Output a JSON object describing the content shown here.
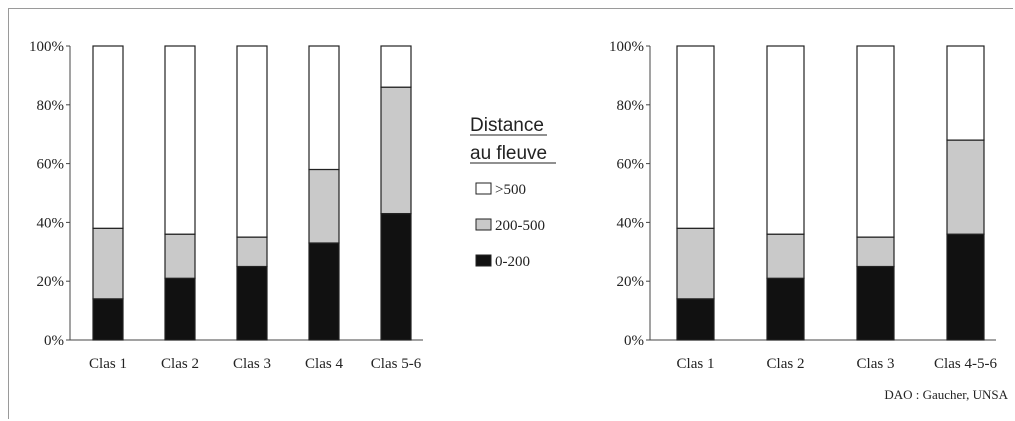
{
  "chart_data": [
    {
      "type": "bar",
      "stacked": true,
      "categories": [
        "Clas 1",
        "Clas 2",
        "Clas 3",
        "Clas 4",
        "Clas 5-6"
      ],
      "series": [
        {
          "name": "0-200",
          "values": [
            14,
            21,
            25,
            33,
            43
          ]
        },
        {
          "name": "200-500",
          "values": [
            24,
            15,
            10,
            25,
            43
          ]
        },
        {
          "name": ">500",
          "values": [
            62,
            64,
            65,
            42,
            14
          ]
        }
      ],
      "yticks": [
        "0%",
        "20%",
        "40%",
        "60%",
        "80%",
        "100%"
      ],
      "ylim": [
        0,
        100
      ],
      "grid": false
    },
    {
      "type": "bar",
      "stacked": true,
      "categories": [
        "Clas 1",
        "Clas 2",
        "Clas 3",
        "Clas 4-5-6"
      ],
      "series": [
        {
          "name": "0-200",
          "values": [
            14,
            21,
            25,
            36
          ]
        },
        {
          "name": "200-500",
          "values": [
            24,
            15,
            10,
            32
          ]
        },
        {
          "name": ">500",
          "values": [
            62,
            64,
            65,
            32
          ]
        }
      ],
      "yticks": [
        "0%",
        "20%",
        "40%",
        "60%",
        "80%",
        "100%"
      ],
      "ylim": [
        0,
        100
      ],
      "grid": false
    }
  ],
  "legend": {
    "title_line1": "Distance",
    "title_line2": "au fleuve",
    "items": [
      {
        "label": ">500",
        "color": "#ffffff"
      },
      {
        "label": "200-500",
        "color": "#c9c9c9"
      },
      {
        "label": "0-200",
        "color": "#111111"
      }
    ]
  },
  "colors": {
    "0-200": "#111111",
    "200-500": "#c9c9c9",
    ">500": "#ffffff"
  },
  "credit": "DAO : Gaucher, UNSA"
}
